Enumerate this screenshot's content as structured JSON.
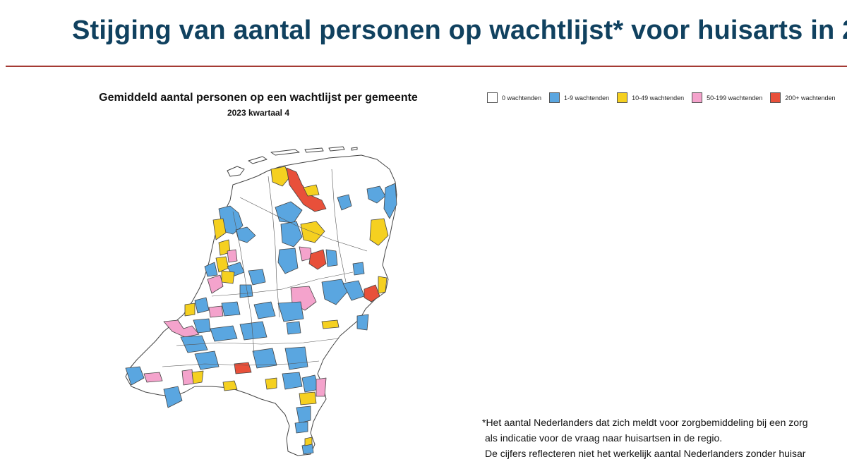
{
  "header": {
    "title": "Stijging van aantal personen op wachtlijst* voor huisarts in 2"
  },
  "map": {
    "title": "Gemiddeld aantal personen op een wachtlijst per gemeente",
    "subtitle": "2023 kwartaal 4",
    "legend": [
      {
        "label": "0 wachtenden",
        "color": "#ffffff"
      },
      {
        "label": "1-9 wachtenden",
        "color": "#5aa6e0"
      },
      {
        "label": "10-49 wachtenden",
        "color": "#f5d020"
      },
      {
        "label": "50-199 wachtenden",
        "color": "#f4a3cc"
      },
      {
        "label": "200+ wachtenden",
        "color": "#e8503a"
      }
    ]
  },
  "footnote": {
    "line1": "*Het aantal Nederlanders dat zich meldt voor zorgbemiddeling bij een zorg",
    "line2": "als indicatie voor de vraag naar huisartsen in de regio.",
    "line3": "De cijfers reflecteren niet het werkelijk aantal Nederlanders zonder huisar"
  },
  "colors": {
    "title": "#10415f",
    "rule": "#a43a33",
    "outline": "#444444"
  }
}
